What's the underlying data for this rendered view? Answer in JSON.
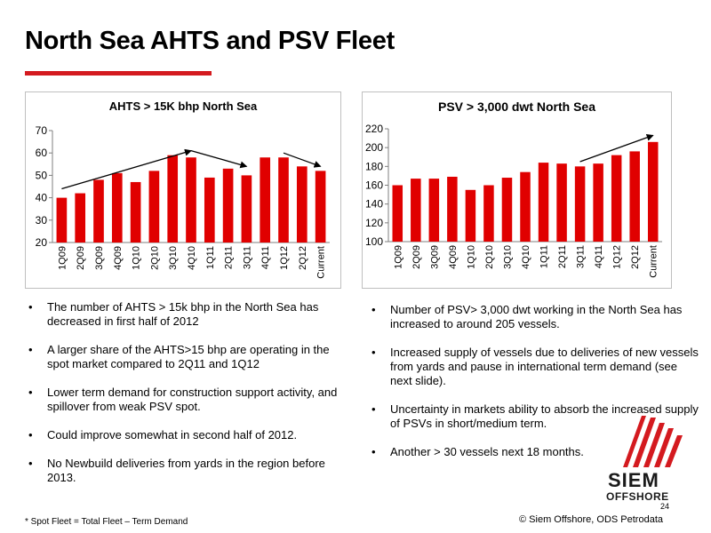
{
  "slide": {
    "title": "North Sea AHTS and PSV Fleet",
    "page_number": "24",
    "footnote": "* Spot Fleet = Total Fleet – Term Demand",
    "source": "© Siem Offshore, ODS Petrodata",
    "accent_color": "#d41a1f",
    "logo": {
      "word1": "SIEM",
      "word2": "OFFSHORE",
      "icon": "siem-sail-icon"
    }
  },
  "chart_data": [
    {
      "type": "bar",
      "title": "AHTS > 15K bhp North Sea",
      "categories": [
        "1Q09",
        "2Q09",
        "3Q09",
        "4Q09",
        "1Q10",
        "2Q10",
        "3Q10",
        "4Q10",
        "1Q11",
        "2Q11",
        "3Q11",
        "4Q11",
        "1Q12",
        "2Q12",
        "Current"
      ],
      "values": [
        40,
        42,
        48,
        51,
        47,
        52,
        59,
        58,
        49,
        53,
        50,
        58,
        58,
        54,
        52
      ],
      "ylim": [
        20,
        70
      ],
      "yticks": [
        20,
        30,
        40,
        50,
        60,
        70
      ],
      "grid": false,
      "bar_color": "#e00000",
      "annotations": [
        {
          "type": "arrow",
          "from": [
            "1Q09",
            44
          ],
          "to": [
            "4Q10",
            61
          ]
        },
        {
          "type": "arrow",
          "from": [
            "4Q10",
            61
          ],
          "to": [
            "3Q11",
            54
          ]
        },
        {
          "type": "arrow",
          "from": [
            "1Q12",
            60
          ],
          "to": [
            "Current",
            54
          ]
        }
      ]
    },
    {
      "type": "bar",
      "title": "PSV > 3,000 dwt North Sea",
      "categories": [
        "1Q09",
        "2Q09",
        "3Q09",
        "4Q09",
        "1Q10",
        "2Q10",
        "3Q10",
        "4Q10",
        "1Q11",
        "2Q11",
        "3Q11",
        "4Q11",
        "1Q12",
        "2Q12",
        "Current"
      ],
      "values": [
        160,
        167,
        167,
        169,
        155,
        160,
        168,
        174,
        184,
        183,
        180,
        183,
        192,
        196,
        206
      ],
      "ylim": [
        100,
        220
      ],
      "yticks": [
        100,
        120,
        140,
        160,
        180,
        200,
        220
      ],
      "grid": false,
      "bar_color": "#e00000",
      "annotations": [
        {
          "type": "arrow",
          "from": [
            "3Q11",
            185
          ],
          "to": [
            "Current",
            213
          ]
        }
      ]
    }
  ],
  "bullets_left": [
    "The number of AHTS > 15k bhp in the North Sea has decreased in first half of 2012",
    "A larger share of the AHTS>15 bhp are operating in the spot market compared to 2Q11 and 1Q12",
    "Lower term demand for construction support activity, and spillover from weak PSV spot.",
    "Could improve somewhat in second half of 2012.",
    "No Newbuild deliveries from yards in the region before 2013."
  ],
  "bullets_right": [
    "Number of PSV> 3,000 dwt working in the North Sea has increased to around 205 vessels.",
    "Increased supply of vessels due to deliveries of new vessels from yards and pause in international term demand (see next slide).",
    "Uncertainty in markets ability to absorb the increased supply of PSVs in short/medium term.",
    "Another > 30 vessels next 18 months."
  ]
}
